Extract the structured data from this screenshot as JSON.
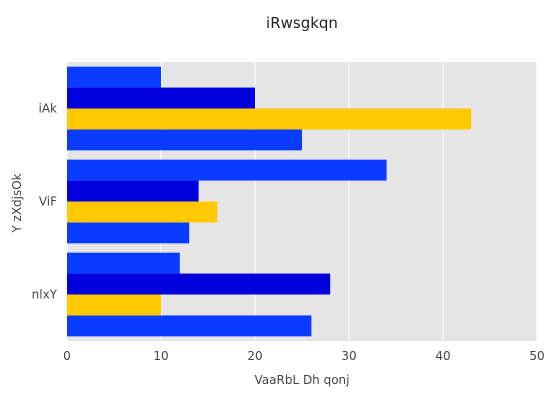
{
  "chart_data": {
    "type": "bar",
    "orientation": "horizontal",
    "title": "iRwsgkqn",
    "xlabel": "VaaRbL Dh qonj",
    "ylabel": "Y zXdjsOk",
    "categories": [
      "nlxY",
      "ViF",
      "iAk"
    ],
    "xlim": [
      0,
      50
    ],
    "xticks": [
      0,
      10,
      20,
      30,
      40,
      50
    ],
    "grid": true,
    "legend": "none",
    "series": [
      {
        "color": "#0a3cff",
        "values": [
          26,
          13,
          25
        ]
      },
      {
        "color": "#ffc800",
        "values": [
          10,
          16,
          43
        ]
      },
      {
        "color": "#0000dd",
        "values": [
          28,
          14,
          20
        ]
      },
      {
        "color": "#0a3cff",
        "values": [
          12,
          34,
          10
        ]
      }
    ],
    "colors": {
      "plot_background": "#e5e5e5",
      "grid": "#ffffff"
    }
  }
}
